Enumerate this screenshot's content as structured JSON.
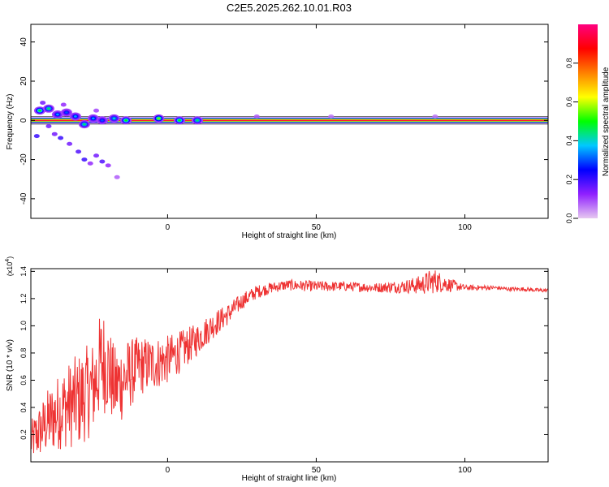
{
  "title": "C2E5.2025.262.10.01.R03",
  "chart_data": [
    {
      "type": "heatmap",
      "panel": "spectrogram",
      "xlabel": "Height of straight line (km)",
      "ylabel": "Frequency (Hz)",
      "xlim": [
        -46,
        128
      ],
      "ylim": [
        -50,
        49
      ],
      "xticks": [
        0,
        50,
        100
      ],
      "xtick_labels": [
        "0",
        "50",
        "100"
      ],
      "yticks": [
        40,
        20,
        0,
        -20,
        -40
      ],
      "ytick_labels": [
        "40",
        "20",
        "0",
        "-20",
        "-40"
      ],
      "main_line": {
        "frequency": 0,
        "x_start": -46,
        "x_end": 128,
        "amplitude": 0.95
      },
      "colorbar": {
        "label": "Normalized spectral amplitude",
        "range": [
          0,
          1
        ],
        "ticks": [
          0.0,
          0.2,
          0.4,
          0.6,
          0.8
        ],
        "tick_labels": [
          "0.0",
          "0.2",
          "0.4",
          "0.6",
          "0.8"
        ],
        "colors": [
          "#e6c8f0",
          "#9020ff",
          "#0000ff",
          "#00c8ff",
          "#00ff00",
          "#ffff00",
          "#ff8000",
          "#ff0000",
          "#ff0080"
        ]
      },
      "clusters": [
        {
          "x": -43,
          "f": 5,
          "amp": 0.5
        },
        {
          "x": -40,
          "f": 6,
          "amp": 0.45
        },
        {
          "x": -37,
          "f": 3,
          "amp": 0.35
        },
        {
          "x": -34,
          "f": 4,
          "amp": 0.3
        },
        {
          "x": -31,
          "f": 2,
          "amp": 0.35
        },
        {
          "x": -28,
          "f": -2,
          "amp": 0.45
        },
        {
          "x": -25,
          "f": 1,
          "amp": 0.35
        },
        {
          "x": -22,
          "f": 0,
          "amp": 0.3
        },
        {
          "x": -18,
          "f": 1,
          "amp": 0.4
        },
        {
          "x": -14,
          "f": 0,
          "amp": 0.5
        },
        {
          "x": -3,
          "f": 1,
          "amp": 0.55
        },
        {
          "x": 4,
          "f": 0,
          "amp": 0.5
        },
        {
          "x": 10,
          "f": 0,
          "amp": 0.45
        }
      ],
      "scatter": [
        {
          "x": -44,
          "f": -8,
          "amp": 0.2
        },
        {
          "x": -40,
          "f": -3,
          "amp": 0.15
        },
        {
          "x": -38,
          "f": -7,
          "amp": 0.15
        },
        {
          "x": -36,
          "f": -9,
          "amp": 0.2
        },
        {
          "x": -33,
          "f": -12,
          "amp": 0.15
        },
        {
          "x": -30,
          "f": -16,
          "amp": 0.18
        },
        {
          "x": -28,
          "f": -20,
          "amp": 0.2
        },
        {
          "x": -26,
          "f": -22,
          "amp": 0.12
        },
        {
          "x": -24,
          "f": -18,
          "amp": 0.15
        },
        {
          "x": -22,
          "f": -21,
          "amp": 0.18
        },
        {
          "x": -20,
          "f": -23,
          "amp": 0.12
        },
        {
          "x": -17,
          "f": -29,
          "amp": 0.08
        },
        {
          "x": -42,
          "f": 9,
          "amp": 0.15
        },
        {
          "x": -35,
          "f": 8,
          "amp": 0.12
        },
        {
          "x": -24,
          "f": 5,
          "amp": 0.1
        },
        {
          "x": 30,
          "f": 2,
          "amp": 0.08
        },
        {
          "x": 55,
          "f": 2,
          "amp": 0.06
        },
        {
          "x": 90,
          "f": 2,
          "amp": 0.06
        }
      ]
    },
    {
      "type": "line",
      "panel": "snr",
      "xlabel": "Height of straight line (km)",
      "ylabel": "SNR (10 * v/v)",
      "scale_label": "(x10",
      "scale_exponent": "4",
      "scale_close": ")",
      "xlim": [
        -46,
        128
      ],
      "ylim": [
        0,
        1.42
      ],
      "xticks": [
        0,
        50,
        100
      ],
      "xtick_labels": [
        "0",
        "50",
        "100"
      ],
      "yticks": [
        0.2,
        0.4,
        0.6,
        0.8,
        1.0,
        1.2,
        1.4
      ],
      "ytick_labels": [
        "0.2",
        "0.4",
        "0.6",
        "0.8",
        "1.0",
        "1.2",
        "1.4"
      ],
      "color": "#ee3333",
      "series": [
        {
          "name": "SNR",
          "x": [
            -46,
            -40,
            -35,
            -30,
            -25,
            -22,
            -20,
            -18,
            -15,
            -10,
            -5,
            0,
            5,
            10,
            15,
            20,
            25,
            30,
            35,
            40,
            50,
            60,
            70,
            80,
            85,
            88,
            90,
            95,
            100,
            105,
            110,
            115,
            120,
            125,
            128
          ],
          "y": [
            0.15,
            0.3,
            0.4,
            0.45,
            0.55,
            0.75,
            0.7,
            0.55,
            0.6,
            0.7,
            0.72,
            0.75,
            0.82,
            0.9,
            1.0,
            1.08,
            1.18,
            1.25,
            1.28,
            1.3,
            1.29,
            1.29,
            1.28,
            1.29,
            1.3,
            1.32,
            1.33,
            1.3,
            1.28,
            1.28,
            1.28,
            1.27,
            1.27,
            1.26,
            1.26
          ],
          "noise": [
            0.15,
            0.25,
            0.3,
            0.35,
            0.35,
            0.4,
            0.35,
            0.3,
            0.3,
            0.22,
            0.2,
            0.18,
            0.15,
            0.12,
            0.1,
            0.08,
            0.06,
            0.05,
            0.04,
            0.04,
            0.04,
            0.035,
            0.035,
            0.05,
            0.07,
            0.09,
            0.09,
            0.05,
            0.02,
            0.02,
            0.015,
            0.015,
            0.015,
            0.015,
            0.015
          ]
        }
      ]
    }
  ]
}
